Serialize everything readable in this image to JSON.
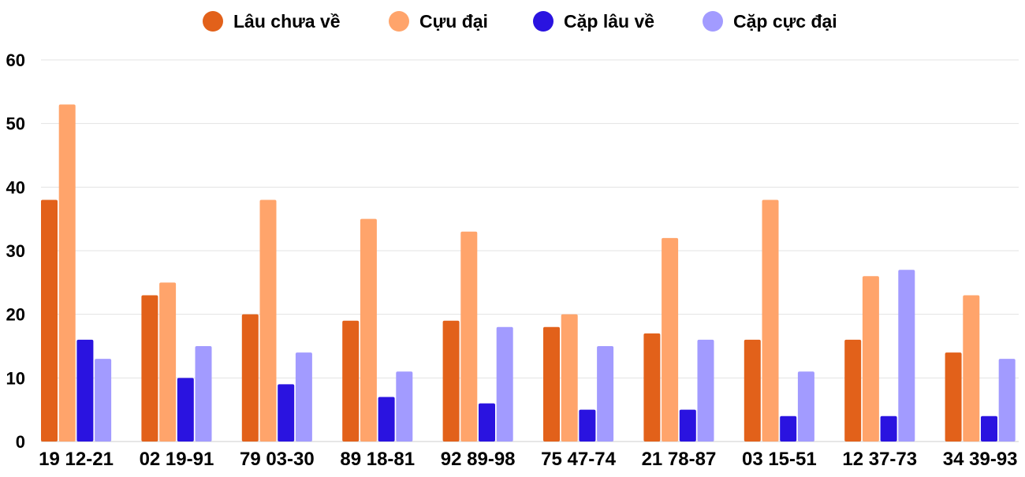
{
  "chart_data": {
    "type": "bar",
    "title": "",
    "xlabel": "",
    "ylabel": "",
    "ylim": [
      0,
      60
    ],
    "yticks": [
      0,
      10,
      20,
      30,
      40,
      50,
      60
    ],
    "grid": true,
    "legend_placement": "top-center",
    "categories": [
      "19 12-21",
      "02 19-91",
      "79 03-30",
      "89 18-81",
      "92 89-98",
      "75 47-74",
      "21 78-87",
      "03 15-51",
      "12 37-73",
      "34 39-93"
    ],
    "series": [
      {
        "name": "Lâu chưa về",
        "color": "#e2611a",
        "values": [
          38,
          23,
          20,
          19,
          19,
          18,
          17,
          16,
          16,
          14
        ]
      },
      {
        "name": "Cựu đại",
        "color": "#ffa46b",
        "values": [
          53,
          25,
          38,
          35,
          33,
          20,
          32,
          38,
          26,
          23
        ]
      },
      {
        "name": "Cặp lâu về",
        "color": "#2a13e0",
        "values": [
          16,
          10,
          9,
          7,
          6,
          5,
          5,
          4,
          4,
          4
        ]
      },
      {
        "name": "Cặp cực đại",
        "color": "#a29bff",
        "values": [
          13,
          15,
          14,
          11,
          18,
          15,
          16,
          11,
          27,
          13
        ]
      }
    ]
  }
}
